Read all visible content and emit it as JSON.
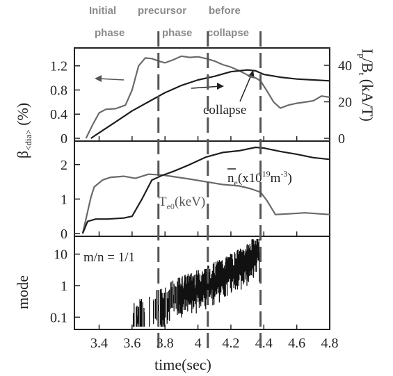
{
  "chart_data": [
    {
      "type": "line",
      "title": "",
      "xlabel": "",
      "ylabel": "β<dia> (%)",
      "ylabel_parts": {
        "main": "β",
        "sub": "<dia>",
        "unit": " (%)"
      },
      "y2label": "I_p/B_t (kA/T)",
      "y2label_parts": {
        "main": "I",
        "sub": "p",
        "mid": "/B",
        "sub2": "t",
        "unit": " (kA/T)"
      },
      "xlim": [
        3.25,
        4.8
      ],
      "ylim": [
        0,
        1.45
      ],
      "y2lim": [
        0,
        48
      ],
      "yticks": [
        "1.2",
        "0.8",
        "0.4",
        "0"
      ],
      "y2ticks": [
        "40",
        "20",
        "0"
      ],
      "grid": false,
      "series": [
        {
          "axis": "left",
          "color": "#6a6a6a",
          "x": [
            3.32,
            3.36,
            3.4,
            3.44,
            3.5,
            3.56,
            3.6,
            3.64,
            3.68,
            3.72,
            3.76,
            3.8,
            3.85,
            3.9,
            3.95,
            4.0,
            4.05,
            4.1,
            4.15,
            4.2,
            4.25,
            4.3,
            4.35,
            4.38,
            4.42,
            4.46,
            4.5,
            4.55,
            4.6,
            4.65,
            4.7,
            4.75,
            4.8
          ],
          "y": [
            0.0,
            0.22,
            0.42,
            0.48,
            0.49,
            0.55,
            0.8,
            1.2,
            1.33,
            1.32,
            1.28,
            1.25,
            1.3,
            1.36,
            1.34,
            1.35,
            1.32,
            1.28,
            1.22,
            1.18,
            1.12,
            1.05,
            1.0,
            0.95,
            0.78,
            0.6,
            0.5,
            0.55,
            0.58,
            0.6,
            0.62,
            0.7,
            0.68
          ]
        },
        {
          "axis": "right",
          "color": "#1e1e1e",
          "x": [
            3.35,
            3.4,
            3.5,
            3.6,
            3.7,
            3.8,
            3.9,
            4.0,
            4.1,
            4.2,
            4.3,
            4.35,
            4.4,
            4.5,
            4.6,
            4.7,
            4.8
          ],
          "y": [
            0,
            3,
            9,
            15,
            20,
            25,
            29,
            32,
            34,
            36.5,
            37.5,
            37,
            35,
            33.5,
            32.5,
            32,
            31.5
          ]
        }
      ],
      "annotations": [
        "collapse"
      ]
    },
    {
      "type": "line",
      "xlim": [
        3.25,
        4.8
      ],
      "ylim": [
        0,
        2.6
      ],
      "yticks": [
        "2",
        "1",
        "0"
      ],
      "grid": false,
      "series": [
        {
          "name": "Te0(keV)",
          "label_parts": {
            "main": "T",
            "sub": "e0",
            "unit": "(keV)"
          },
          "color": "#6a6a6a",
          "x": [
            3.3,
            3.35,
            3.37,
            3.42,
            3.47,
            3.55,
            3.62,
            3.7,
            3.78,
            3.85,
            3.95,
            4.05,
            4.15,
            4.25,
            4.32,
            4.38,
            4.42,
            4.47,
            4.55,
            4.65,
            4.8
          ],
          "y": [
            0.0,
            1.05,
            1.35,
            1.55,
            1.63,
            1.66,
            1.6,
            1.72,
            1.7,
            1.65,
            1.58,
            1.5,
            1.42,
            1.38,
            1.3,
            1.2,
            0.95,
            0.55,
            0.57,
            0.6,
            0.55
          ]
        },
        {
          "name": "ne(x10^19 m^-3)",
          "label_parts": {
            "main": "n",
            "sub": "e",
            "mid": "(x10",
            "sup": "19",
            "mid2": "m",
            "sup2": "-3",
            "end": ")"
          },
          "color": "#1e1e1e",
          "x": [
            3.3,
            3.33,
            3.38,
            3.45,
            3.55,
            3.6,
            3.66,
            3.72,
            3.78,
            3.85,
            3.95,
            4.05,
            4.15,
            4.25,
            4.35,
            4.4,
            4.5,
            4.6,
            4.7,
            4.8
          ],
          "y": [
            0.0,
            0.35,
            0.42,
            0.42,
            0.45,
            0.5,
            1.0,
            1.55,
            1.68,
            1.8,
            2.0,
            2.22,
            2.35,
            2.4,
            2.5,
            2.48,
            2.38,
            2.3,
            2.2,
            2.15
          ]
        }
      ]
    },
    {
      "type": "line",
      "xlabel": "time(sec)",
      "ylabel": "mode",
      "xlim": [
        3.25,
        4.8
      ],
      "ylim": [
        0.05,
        30
      ],
      "yscale": "log",
      "yticks": [
        "10",
        "1",
        "0.1"
      ],
      "xticks": [
        "3.4",
        "3.6",
        "3.8",
        "4",
        "4.2",
        "4.4",
        "4.6",
        "4.8"
      ],
      "grid": false,
      "series": [
        {
          "name": "m/n = 1/1",
          "color": "#111111",
          "x": [
            3.6,
            3.7,
            3.8,
            3.9,
            4.0,
            4.1,
            4.2,
            4.3,
            4.37,
            4.38
          ],
          "y": [
            0.08,
            0.15,
            0.3,
            0.6,
            0.9,
            1.6,
            3.0,
            6.0,
            15.0,
            0.05
          ]
        }
      ],
      "annotations": [
        "m/n = 1/1"
      ]
    }
  ],
  "phases": {
    "initial": [
      "Initial",
      "phase"
    ],
    "precursor": [
      "precursor",
      "phase"
    ],
    "before": [
      "before",
      "collapse"
    ],
    "lines_x": [
      3.76,
      4.06,
      4.38
    ]
  }
}
